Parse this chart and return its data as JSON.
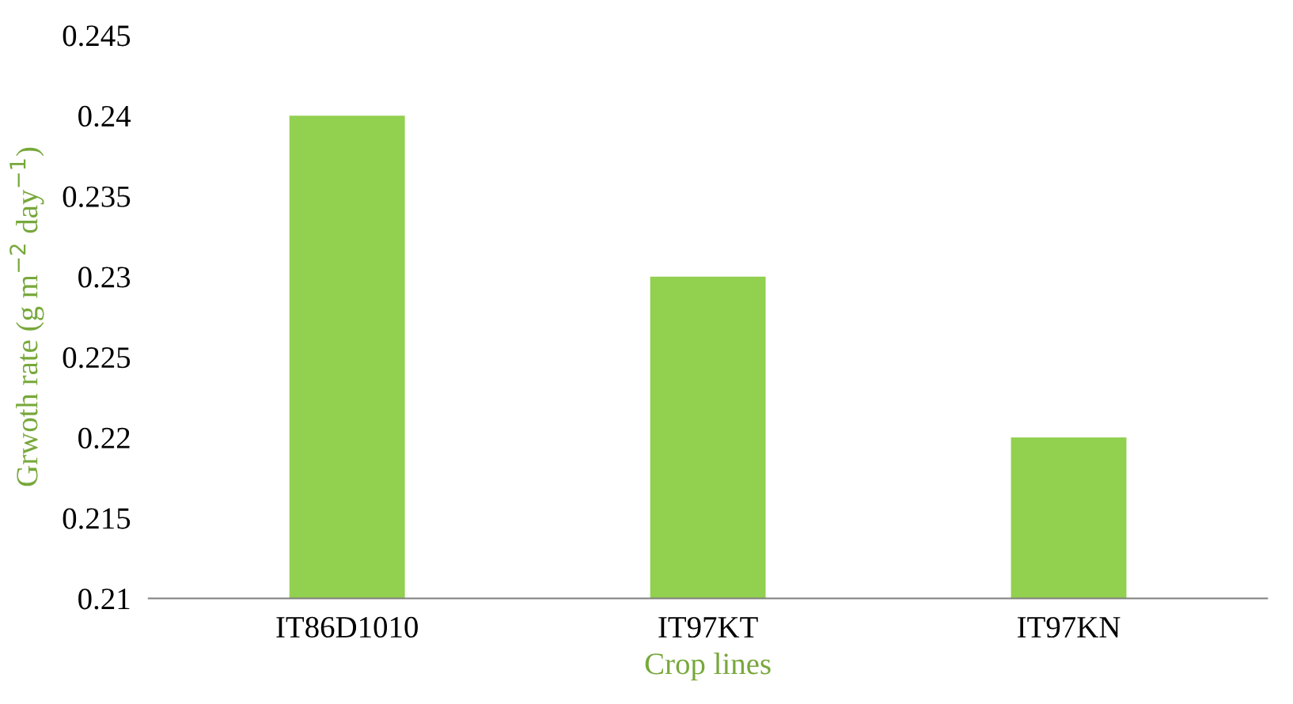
{
  "chart_data": {
    "type": "bar",
    "xlabel": "Crop lines",
    "ylabel": "Grwoth rate (g m$^{−2}$ day$^{−1}$)",
    "categories": [
      "IT86D1010",
      "IT97KT",
      "IT97KN"
    ],
    "values": [
      0.24,
      0.23,
      0.22
    ],
    "color": "#92d050",
    "ylim": [
      0.21,
      0.245
    ],
    "yticks": [
      0.21,
      0.215,
      0.22,
      0.225,
      0.23,
      0.235,
      0.24,
      0.245
    ],
    "grid": false
  }
}
